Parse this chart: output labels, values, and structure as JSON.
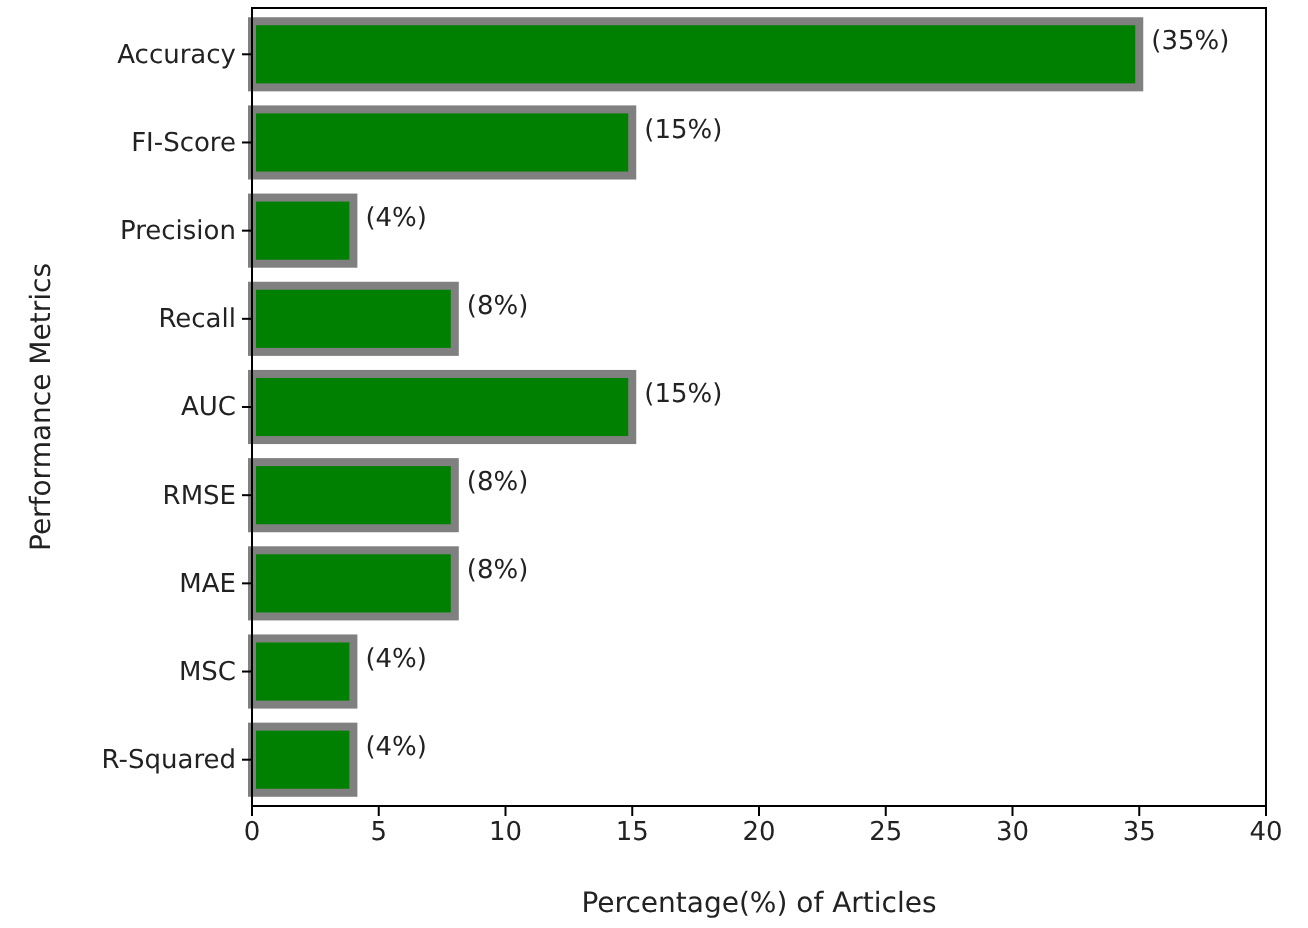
{
  "chart_data": {
    "type": "bar",
    "orientation": "horizontal",
    "xlabel": "Percentage(%) of Articles",
    "ylabel": "Performance Metrics",
    "categories": [
      "Accuracy",
      "FI-Score",
      "Precision",
      "Recall",
      "AUC",
      "RMSE",
      "MAE",
      "MSC",
      "R-Squared"
    ],
    "values": [
      35,
      15,
      4,
      8,
      15,
      8,
      8,
      4,
      4
    ],
    "value_labels": [
      "(35%)",
      "(15%)",
      "(4%)",
      "(8%)",
      "(15%)",
      "(8%)",
      "(8%)",
      "(4%)",
      "(4%)"
    ],
    "color": "#008000",
    "xlim": [
      0,
      40
    ],
    "xticks": [
      0,
      5,
      10,
      15,
      20,
      25,
      30,
      35,
      40
    ],
    "grid": false
  }
}
